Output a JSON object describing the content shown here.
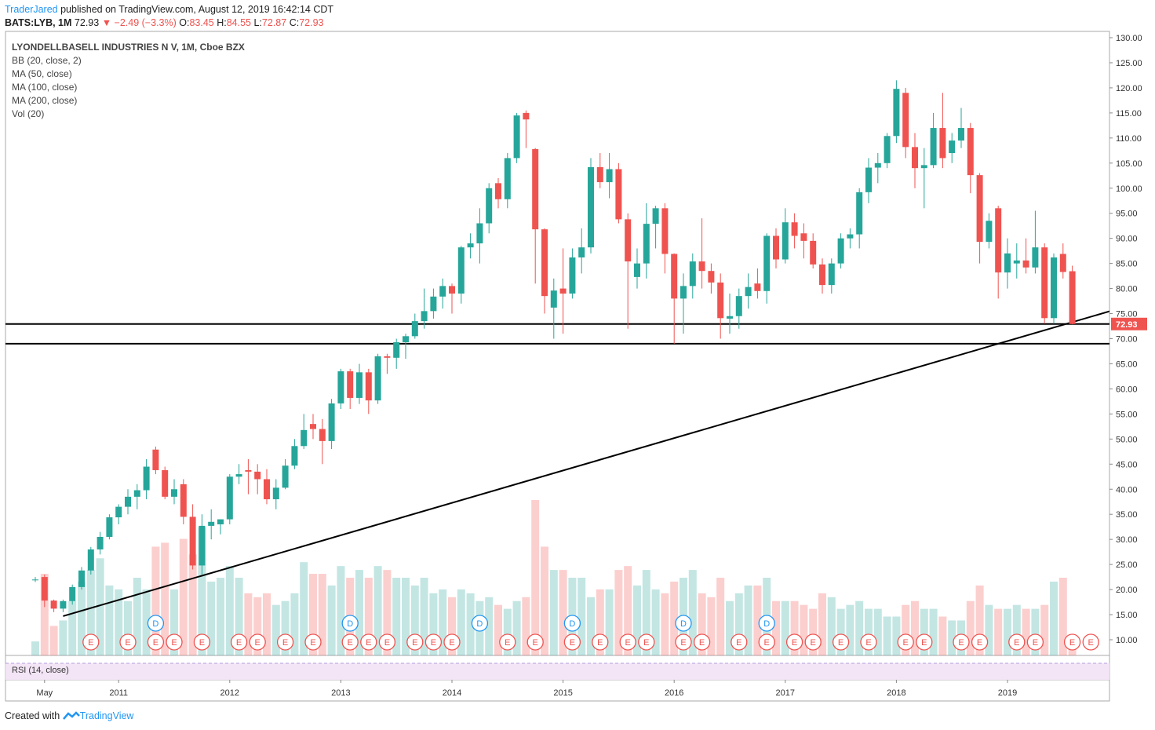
{
  "header": {
    "author": "TraderJared",
    "published": "published on TradingView.com, August 12, 2019 16:42:14 CDT",
    "symbol": "BATS:LYB, 1M",
    "last": "72.93",
    "arrow": "▼",
    "change": "−2.49 (−3.3%)",
    "o_label": "O:",
    "open": "83.45",
    "h_label": "H:",
    "high": "84.55",
    "l_label": "L:",
    "low": "72.87",
    "c_label": "C:",
    "close": "72.93"
  },
  "footer": {
    "created": "Created with",
    "brand": "TradingView"
  },
  "chart_data": {
    "type": "candlestick",
    "title": "LYONDELLBASELL INDUSTRIES N V, 1M, Cboe BZX",
    "indicators": [
      "BB (20, close, 2)",
      "MA (50, close)",
      "MA (100, close)",
      "MA (200, close)",
      "Vol (20)"
    ],
    "rsi_label": "RSI (14, close)",
    "up_color": "#26a69a",
    "down_color": "#ef5350",
    "x": [
      "2010-04",
      "2010-05",
      "2010-06",
      "2010-07",
      "2010-08",
      "2010-09",
      "2010-10",
      "2010-11",
      "2010-12",
      "2011-01",
      "2011-02",
      "2011-03",
      "2011-04",
      "2011-05",
      "2011-06",
      "2011-07",
      "2011-08",
      "2011-09",
      "2011-10",
      "2011-11",
      "2011-12",
      "2012-01",
      "2012-02",
      "2012-03",
      "2012-04",
      "2012-05",
      "2012-06",
      "2012-07",
      "2012-08",
      "2012-09",
      "2012-10",
      "2012-11",
      "2012-12",
      "2013-01",
      "2013-02",
      "2013-03",
      "2013-04",
      "2013-05",
      "2013-06",
      "2013-07",
      "2013-08",
      "2013-09",
      "2013-10",
      "2013-11",
      "2013-12",
      "2014-01",
      "2014-02",
      "2014-03",
      "2014-04",
      "2014-05",
      "2014-06",
      "2014-07",
      "2014-08",
      "2014-09",
      "2014-10",
      "2014-11",
      "2014-12",
      "2015-01",
      "2015-02",
      "2015-03",
      "2015-04",
      "2015-05",
      "2015-06",
      "2015-07",
      "2015-08",
      "2015-09",
      "2015-10",
      "2015-11",
      "2015-12",
      "2016-01",
      "2016-02",
      "2016-03",
      "2016-04",
      "2016-05",
      "2016-06",
      "2016-07",
      "2016-08",
      "2016-09",
      "2016-10",
      "2016-11",
      "2016-12",
      "2017-01",
      "2017-02",
      "2017-03",
      "2017-04",
      "2017-05",
      "2017-06",
      "2017-07",
      "2017-08",
      "2017-09",
      "2017-10",
      "2017-11",
      "2017-12",
      "2018-01",
      "2018-02",
      "2018-03",
      "2018-04",
      "2018-05",
      "2018-06",
      "2018-07",
      "2018-08",
      "2018-09",
      "2018-10",
      "2018-11",
      "2018-12",
      "2019-01",
      "2019-02",
      "2019-03",
      "2019-04",
      "2019-05",
      "2019-06",
      "2019-07",
      "2019-08"
    ],
    "open": [
      22,
      22.5,
      17.8,
      16.2,
      17.7,
      20.5,
      23.8,
      28,
      30.5,
      34.4,
      36.5,
      38.5,
      39.8,
      47.9,
      43.8,
      38.5,
      41,
      34.5,
      24.8,
      32.7,
      33,
      34,
      42.5,
      43.8,
      43.5,
      42,
      38,
      40.3,
      44.7,
      48.6,
      53,
      52,
      49.6,
      57.1,
      63.5,
      58.2,
      63.3,
      57.7,
      66.5,
      66.2,
      69.3,
      70.5,
      73.5,
      75.5,
      78.4,
      80.5,
      79,
      88.2,
      89,
      93,
      101,
      97.8,
      106,
      115,
      107.8,
      91.8,
      76.2,
      80,
      79,
      86.2,
      88.2,
      104.2,
      101.2,
      103.8,
      93.8,
      82.3,
      85,
      92.9,
      96,
      86.9,
      78,
      80.5,
      85.4,
      83.5,
      81.2,
      74,
      74.5,
      78.5,
      81,
      79.5,
      90.5,
      85.8,
      93.2,
      91,
      89.5,
      84.8,
      80.7,
      85,
      90,
      90.8,
      99.2,
      104.1,
      105,
      110.4,
      119,
      108.2,
      104,
      104.6,
      112,
      107,
      109.5,
      112,
      102.6,
      89.3,
      96,
      83.2,
      85,
      85.6,
      84.2,
      88.2,
      74.1,
      86.9,
      83.45
    ],
    "high": [
      22.5,
      23,
      18,
      18,
      21,
      24.5,
      28.5,
      31.5,
      35,
      37,
      40,
      41,
      46,
      48.5,
      44.5,
      42,
      42,
      37,
      35,
      36,
      34,
      43,
      45,
      46,
      45,
      44,
      42,
      46,
      50,
      55,
      55,
      54,
      58,
      64,
      64,
      65,
      64,
      67,
      67,
      70,
      71,
      75,
      80,
      80,
      82,
      81,
      88.5,
      91,
      96,
      101,
      102,
      107,
      115,
      115.5,
      108,
      92,
      82,
      88,
      88,
      92,
      106,
      107,
      107,
      105,
      95,
      88,
      97,
      96.5,
      97,
      87,
      83,
      87,
      94,
      85,
      83,
      79,
      80,
      83,
      84,
      91,
      92,
      96,
      95,
      93,
      91,
      86,
      86,
      91,
      92,
      100,
      106,
      107,
      111,
      121.5,
      120,
      111,
      108,
      115,
      119,
      111,
      116,
      113,
      103,
      95,
      96.5,
      90,
      89,
      90,
      95.5,
      89,
      87,
      89,
      84.55
    ],
    "low": [
      21.5,
      16.5,
      15.5,
      15.5,
      17,
      20,
      23,
      27,
      30,
      33,
      35,
      36,
      38,
      43,
      38,
      37,
      33,
      24,
      23,
      30,
      31,
      33,
      41,
      39,
      39,
      37,
      36,
      40,
      44,
      48,
      50,
      45,
      48,
      56,
      56,
      57,
      55,
      57,
      63,
      64,
      66,
      70,
      72,
      74,
      76,
      75,
      77,
      86,
      85,
      91,
      96,
      96,
      105,
      108,
      81,
      75,
      70,
      71,
      78,
      83,
      87,
      100,
      98,
      93,
      72,
      80,
      82,
      88,
      83,
      69,
      71,
      78,
      80,
      79,
      70,
      71,
      72,
      76,
      78,
      77,
      84,
      85,
      88,
      86,
      84,
      79,
      79,
      84,
      88,
      88,
      97,
      101,
      104,
      109,
      106,
      100,
      96,
      104,
      104,
      105,
      108,
      99,
      85,
      88,
      78,
      80,
      82,
      83,
      83,
      73,
      73,
      82,
      72.87
    ],
    "close": [
      22,
      17.8,
      16.2,
      17.7,
      20.5,
      23.8,
      28,
      30.5,
      34.4,
      36.5,
      38.5,
      39.8,
      44.5,
      43.8,
      38.5,
      40,
      34.5,
      24.8,
      32.7,
      33.5,
      34,
      42.5,
      43,
      43.5,
      42,
      38,
      40.3,
      44.7,
      48.6,
      51.8,
      52,
      49.6,
      57.1,
      63.5,
      58.2,
      63.3,
      57.7,
      66.5,
      66.2,
      69.3,
      70.5,
      73.5,
      75.5,
      78.4,
      80.5,
      79,
      88.2,
      89,
      93,
      100,
      97.8,
      106,
      114.5,
      113.7,
      91.8,
      78.5,
      79.6,
      79,
      86.2,
      88.2,
      104.2,
      101.2,
      103.8,
      93.8,
      85.4,
      85,
      92.9,
      96,
      86.9,
      78,
      80.5,
      85.4,
      83.5,
      81.2,
      74.1,
      74.5,
      78.5,
      80.3,
      79.5,
      90.5,
      85.8,
      93.2,
      90.5,
      89.5,
      84.8,
      80.7,
      85,
      90,
      90.8,
      99.2,
      104.1,
      105,
      110.4,
      119.8,
      108.2,
      104,
      104.6,
      112,
      106,
      109.5,
      112,
      102.6,
      89.3,
      93.5,
      83.2,
      87,
      85.6,
      84.2,
      88.2,
      74.1,
      86.2,
      83.3,
      72.93
    ],
    "volume": [
      18,
      105,
      38,
      45,
      70,
      95,
      110,
      125,
      90,
      85,
      70,
      100,
      85,
      140,
      145,
      85,
      150,
      130,
      165,
      95,
      100,
      115,
      100,
      80,
      75,
      80,
      65,
      70,
      80,
      120,
      105,
      105,
      90,
      115,
      100,
      110,
      100,
      115,
      110,
      100,
      100,
      90,
      100,
      80,
      85,
      75,
      85,
      80,
      70,
      75,
      65,
      60,
      70,
      75,
      200,
      140,
      110,
      110,
      100,
      100,
      75,
      85,
      85,
      110,
      115,
      90,
      110,
      85,
      80,
      95,
      100,
      110,
      80,
      75,
      100,
      70,
      80,
      90,
      90,
      100,
      70,
      70,
      70,
      65,
      60,
      80,
      75,
      60,
      65,
      70,
      60,
      60,
      50,
      50,
      65,
      70,
      60,
      60,
      50,
      45,
      45,
      70,
      90,
      65,
      60,
      60,
      65,
      60,
      60,
      65,
      95,
      100,
      10
    ],
    "ylim": [
      10,
      130
    ],
    "yticks": [
      {
        "value": 10,
        "label": "10.00"
      },
      {
        "value": 15,
        "label": "15.00"
      },
      {
        "value": 20,
        "label": "20.00"
      },
      {
        "value": 25,
        "label": "25.00"
      },
      {
        "value": 30,
        "label": "30.00"
      },
      {
        "value": 35,
        "label": "35.00"
      },
      {
        "value": 40,
        "label": "40.00"
      },
      {
        "value": 45,
        "label": "45.00"
      },
      {
        "value": 50,
        "label": "50.00"
      },
      {
        "value": 55,
        "label": "55.00"
      },
      {
        "value": 60,
        "label": "60.00"
      },
      {
        "value": 65,
        "label": "65.00"
      },
      {
        "value": 70,
        "label": "70.00"
      },
      {
        "value": 75,
        "label": "75.00"
      },
      {
        "value": 80,
        "label": "80.00"
      },
      {
        "value": 85,
        "label": "85.00"
      },
      {
        "value": 90,
        "label": "90.00"
      },
      {
        "value": 95,
        "label": "95.00"
      },
      {
        "value": 100,
        "label": "100.00"
      },
      {
        "value": 105,
        "label": "105.00"
      },
      {
        "value": 110,
        "label": "110.00"
      },
      {
        "value": 115,
        "label": "115.00"
      },
      {
        "value": 120,
        "label": "120.00"
      },
      {
        "value": 125,
        "label": "125.00"
      },
      {
        "value": 130,
        "label": "130.00"
      }
    ],
    "xticks": [
      {
        "value": "2010-05",
        "label": "May"
      },
      {
        "value": "2011-01",
        "label": "2011"
      },
      {
        "value": "2012-01",
        "label": "2012"
      },
      {
        "value": "2013-01",
        "label": "2013"
      },
      {
        "value": "2014-01",
        "label": "2014"
      },
      {
        "value": "2015-01",
        "label": "2015"
      },
      {
        "value": "2016-01",
        "label": "2016"
      },
      {
        "value": "2017-01",
        "label": "2017"
      },
      {
        "value": "2018-01",
        "label": "2018"
      },
      {
        "value": "2019-01",
        "label": "2019"
      }
    ],
    "hlines": [
      72.93,
      69
    ],
    "trendline": [
      {
        "date": "2010-07",
        "value": 14.7
      },
      {
        "date": "2019-08",
        "value": 73.3
      }
    ],
    "earnings": [
      {
        "date": "2010-10",
        "label": "E"
      },
      {
        "date": "2011-02",
        "label": "E"
      },
      {
        "date": "2011-05",
        "label": "E"
      },
      {
        "date": "2011-07",
        "label": "E"
      },
      {
        "date": "2011-10",
        "label": "E"
      },
      {
        "date": "2012-02",
        "label": "E"
      },
      {
        "date": "2012-04",
        "label": "E"
      },
      {
        "date": "2012-07",
        "label": "E"
      },
      {
        "date": "2012-10",
        "label": "E"
      },
      {
        "date": "2013-02",
        "label": "E"
      },
      {
        "date": "2013-04",
        "label": "E"
      },
      {
        "date": "2013-06",
        "label": "E"
      },
      {
        "date": "2013-09",
        "label": "E"
      },
      {
        "date": "2013-11",
        "label": "E"
      },
      {
        "date": "2014-01",
        "label": "E"
      },
      {
        "date": "2014-07",
        "label": "E"
      },
      {
        "date": "2014-10",
        "label": "E"
      },
      {
        "date": "2015-02",
        "label": "E"
      },
      {
        "date": "2015-05",
        "label": "E"
      },
      {
        "date": "2015-08",
        "label": "E"
      },
      {
        "date": "2015-10",
        "label": "E"
      },
      {
        "date": "2016-02",
        "label": "E"
      },
      {
        "date": "2016-04",
        "label": "E"
      },
      {
        "date": "2016-08",
        "label": "E"
      },
      {
        "date": "2016-11",
        "label": "E"
      },
      {
        "date": "2017-02",
        "label": "E"
      },
      {
        "date": "2017-04",
        "label": "E"
      },
      {
        "date": "2017-07",
        "label": "E"
      },
      {
        "date": "2017-10",
        "label": "E"
      },
      {
        "date": "2018-02",
        "label": "E"
      },
      {
        "date": "2018-04",
        "label": "E"
      },
      {
        "date": "2018-08",
        "label": "E"
      },
      {
        "date": "2018-10",
        "label": "E"
      },
      {
        "date": "2019-02",
        "label": "E"
      },
      {
        "date": "2019-04",
        "label": "E"
      },
      {
        "date": "2019-08",
        "label": "E"
      },
      {
        "date": "2019-10",
        "label": "E"
      }
    ],
    "dividends": [
      {
        "date": "2011-05",
        "label": "D"
      },
      {
        "date": "2013-02",
        "label": "D"
      },
      {
        "date": "2014-04",
        "label": "D"
      },
      {
        "date": "2015-02",
        "label": "D"
      },
      {
        "date": "2016-02",
        "label": "D"
      },
      {
        "date": "2016-11",
        "label": "D"
      }
    ]
  }
}
